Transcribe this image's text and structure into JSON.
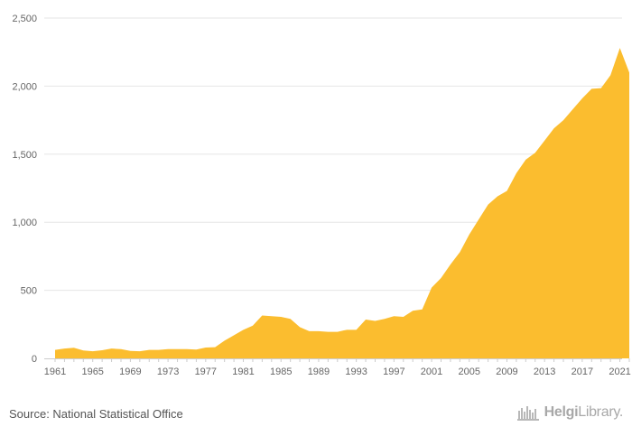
{
  "chart_data": {
    "type": "area",
    "title": "",
    "xlabel": "",
    "ylabel": "",
    "ylim": [
      0,
      2500
    ],
    "xlim": [
      1961,
      2022
    ],
    "yticks": [
      0,
      500,
      1000,
      1500,
      2000,
      2500
    ],
    "ytick_labels": [
      "0",
      "500",
      "1,000",
      "1,500",
      "2,000",
      "2,500"
    ],
    "xticks": [
      1961,
      1965,
      1969,
      1973,
      1977,
      1981,
      1985,
      1989,
      1993,
      1997,
      2001,
      2005,
      2009,
      2013,
      2017,
      2021
    ],
    "xtick_labels": [
      "1961",
      "1965",
      "1969",
      "1973",
      "1977",
      "1981",
      "1985",
      "1989",
      "1993",
      "1997",
      "2001",
      "2005",
      "2009",
      "2013",
      "2017",
      "2021"
    ],
    "grid": true,
    "color": "#fbbd2f",
    "x": [
      1961,
      1962,
      1963,
      1964,
      1965,
      1966,
      1967,
      1968,
      1969,
      1970,
      1971,
      1972,
      1973,
      1974,
      1975,
      1976,
      1977,
      1978,
      1979,
      1980,
      1981,
      1982,
      1983,
      1984,
      1985,
      1986,
      1987,
      1988,
      1989,
      1990,
      1991,
      1992,
      1993,
      1994,
      1995,
      1996,
      1997,
      1998,
      1999,
      2000,
      2001,
      2002,
      2003,
      2004,
      2005,
      2006,
      2007,
      2008,
      2009,
      2010,
      2011,
      2012,
      2013,
      2014,
      2015,
      2016,
      2017,
      2018,
      2019,
      2020,
      2021,
      2022
    ],
    "values": [
      62,
      72,
      78,
      58,
      52,
      60,
      72,
      68,
      55,
      52,
      62,
      62,
      68,
      68,
      68,
      65,
      80,
      82,
      130,
      170,
      210,
      240,
      315,
      310,
      305,
      290,
      230,
      200,
      200,
      195,
      195,
      210,
      210,
      285,
      275,
      290,
      310,
      305,
      350,
      360,
      520,
      590,
      690,
      780,
      910,
      1020,
      1130,
      1190,
      1230,
      1360,
      1460,
      1510,
      1600,
      1690,
      1750,
      1830,
      1910,
      1980,
      1985,
      2080,
      2280,
      2100
    ]
  },
  "footer": {
    "source": "Source: National Statistical Office",
    "brand_bold": "Helgi",
    "brand_light": "Library."
  }
}
